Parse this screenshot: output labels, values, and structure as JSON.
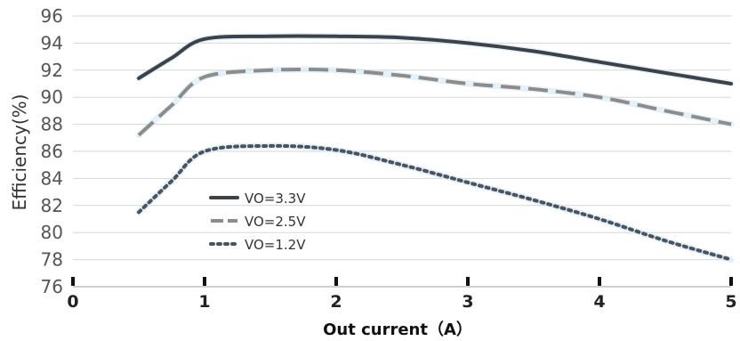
{
  "chart_data": {
    "type": "line",
    "title": "",
    "xlabel": "Out current（A）",
    "ylabel": "Efficiency(%)",
    "xlim": [
      0,
      5
    ],
    "ylim": [
      76,
      96
    ],
    "x_ticks": [
      "0",
      "1",
      "2",
      "3",
      "4",
      "5"
    ],
    "y_ticks": [
      "76",
      "78",
      "80",
      "82",
      "84",
      "86",
      "88",
      "90",
      "92",
      "94",
      "96"
    ],
    "grid": "horizontal",
    "legend_position": "left-center",
    "series": [
      {
        "name": "VO=3.3V",
        "color": "#3d4249",
        "dash": "solid",
        "x": [
          0.5,
          0.75,
          1.0,
          1.5,
          2.0,
          2.5,
          3.0,
          3.5,
          4.0,
          4.5,
          5.0
        ],
        "y": [
          91.4,
          92.9,
          94.3,
          94.5,
          94.5,
          94.4,
          94.0,
          93.4,
          92.6,
          91.8,
          91.0
        ]
      },
      {
        "name": "VO=2.5V",
        "color": "#8c8c8c",
        "dash": "long-dash",
        "x": [
          0.5,
          0.75,
          1.0,
          1.5,
          2.0,
          2.5,
          3.0,
          3.5,
          4.0,
          4.5,
          5.0
        ],
        "y": [
          87.2,
          89.4,
          91.5,
          92.0,
          92.0,
          91.6,
          91.0,
          90.6,
          90.0,
          89.0,
          88.0
        ]
      },
      {
        "name": "VO=1.2V",
        "color": "#4a5460",
        "dash": "dotted",
        "x": [
          0.5,
          0.75,
          1.0,
          1.5,
          2.0,
          2.5,
          3.0,
          3.5,
          4.0,
          4.5,
          5.0
        ],
        "y": [
          81.5,
          83.8,
          86.0,
          86.4,
          86.1,
          85.0,
          83.7,
          82.4,
          81.0,
          79.4,
          78.0
        ]
      }
    ]
  }
}
